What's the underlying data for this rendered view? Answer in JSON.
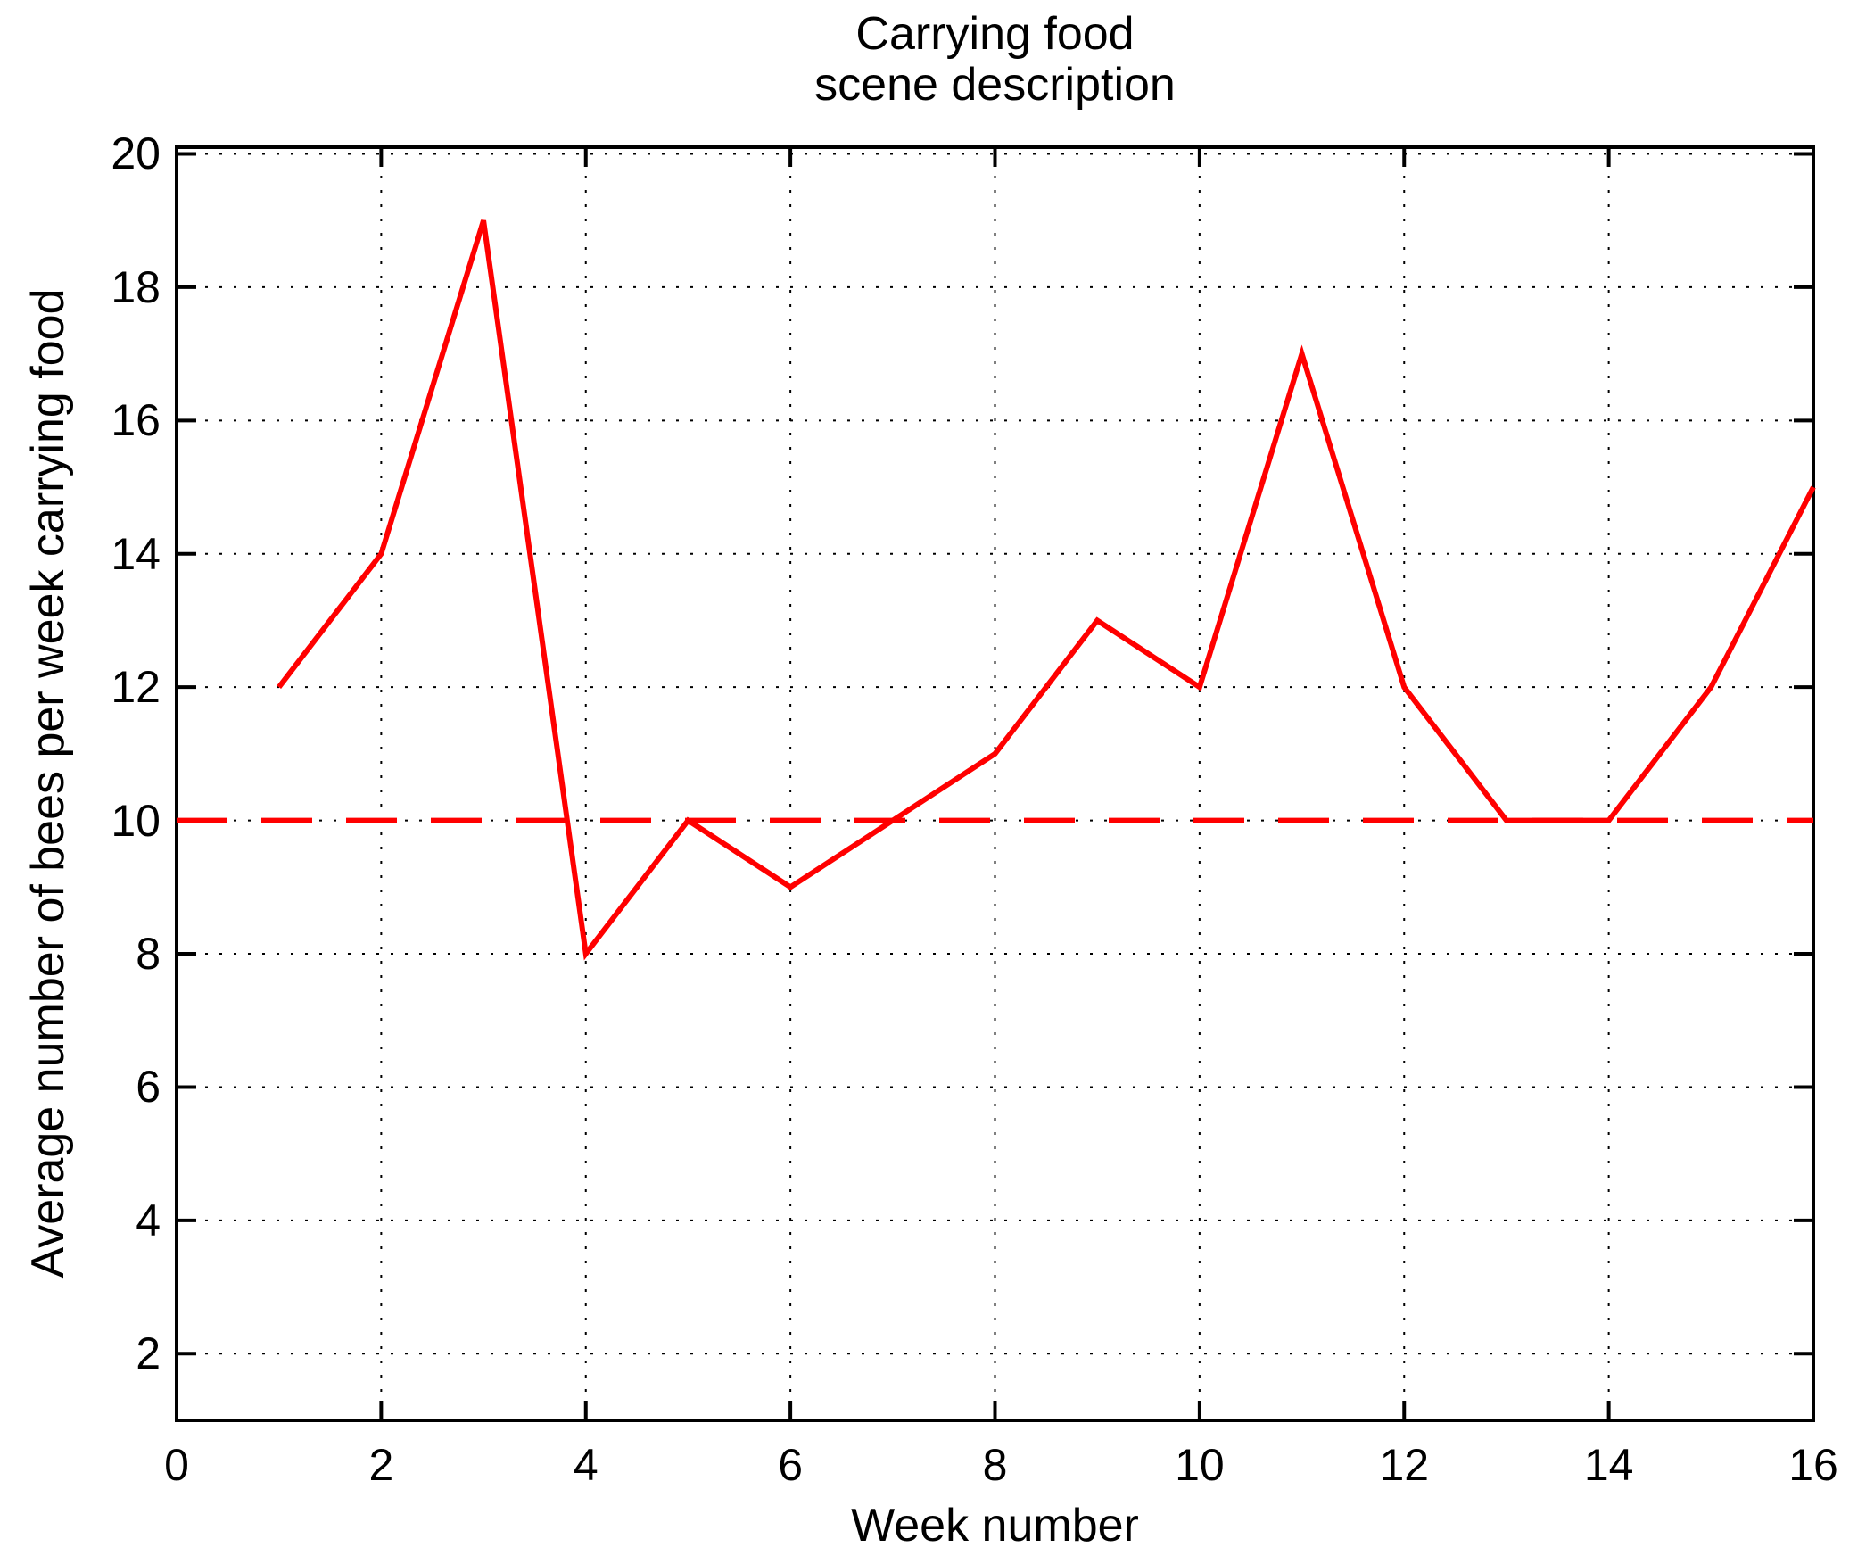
{
  "title": {
    "line1": "Carrying food",
    "line2": "scene description"
  },
  "axes": {
    "xlabel": "Week number",
    "ylabel": "Average number of bees per week carrying food"
  },
  "colors": {
    "series": "#ff0000",
    "reference": "#ff0000",
    "grid": "#000000",
    "axis": "#000000",
    "background": "#ffffff"
  },
  "chart_data": {
    "type": "line",
    "title": "Carrying food scene description",
    "xlabel": "Week number",
    "ylabel": "Average number of bees per week carrying food",
    "x": [
      1,
      2,
      3,
      4,
      5,
      6,
      7,
      8,
      9,
      10,
      11,
      12,
      13,
      14,
      15,
      16
    ],
    "series": [
      {
        "name": "average-bees-carrying-food",
        "color": "#ff0000",
        "style": "solid",
        "values": [
          12,
          14,
          19,
          8,
          10,
          9,
          10,
          11,
          13,
          12,
          17,
          12,
          10,
          10,
          12,
          15
        ]
      },
      {
        "name": "reference-level",
        "color": "#ff0000",
        "style": "dashed",
        "constant": 10
      }
    ],
    "xlim": [
      0,
      16
    ],
    "ylim": [
      1,
      20
    ],
    "x_ticks": [
      0,
      2,
      4,
      6,
      8,
      10,
      12,
      14,
      16
    ],
    "y_ticks": [
      2,
      4,
      6,
      8,
      10,
      12,
      14,
      16,
      18,
      20
    ],
    "grid": "dotted",
    "legend": "none"
  }
}
